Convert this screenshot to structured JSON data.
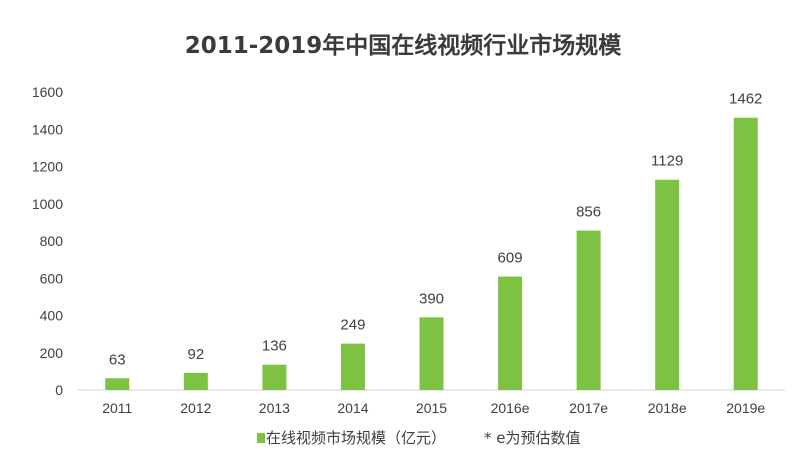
{
  "chart_data": {
    "type": "bar",
    "title": "2011-2019年中国在线视频行业市场规模",
    "categories": [
      "2011",
      "2012",
      "2013",
      "2014",
      "2015",
      "2016e",
      "2017e",
      "2018e",
      "2019e"
    ],
    "series": [
      {
        "name": "在线视频市场规模（亿元）",
        "values": [
          63,
          92,
          136,
          249,
          390,
          609,
          856,
          1129,
          1462
        ]
      }
    ],
    "ylim": [
      0,
      1600
    ],
    "yticks": [
      "0",
      "200",
      "400",
      "600",
      "800",
      "1000",
      "1200",
      "1400",
      "1600"
    ],
    "grid": false,
    "legend": "bottom",
    "note": "* e为预估数值",
    "bar_color": "#7dc242",
    "axis_color": "#d0d0d0"
  }
}
